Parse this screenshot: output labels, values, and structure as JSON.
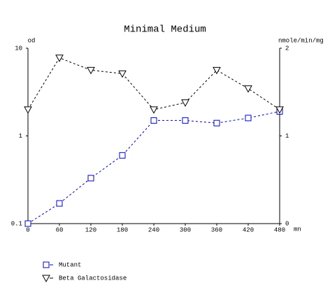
{
  "chart_data": {
    "type": "line",
    "title": "Minimal Medium",
    "ylabel": "od",
    "y2label": "nmole/min/mg",
    "xlabel": "mn",
    "x": [
      0,
      60,
      120,
      180,
      240,
      300,
      360,
      420,
      480
    ],
    "xlim": [
      0,
      480
    ],
    "xticks": [
      0,
      60,
      120,
      180,
      240,
      300,
      360,
      420,
      480
    ],
    "ylim": [
      0.1,
      10
    ],
    "yticks": [
      0.1,
      1,
      10
    ],
    "log_y": true,
    "y2lim": [
      0,
      2
    ],
    "y2ticks": [
      0,
      1,
      2
    ],
    "legend": "bottom-left",
    "series": [
      {
        "name": "Mutant",
        "color": "#0000cc",
        "marker": "square",
        "axis": "y",
        "values": [
          0.1,
          0.17,
          0.33,
          0.6,
          1.5,
          1.5,
          1.4,
          1.6,
          1.9
        ]
      },
      {
        "name": "Beta Galactosidase",
        "color": "#000000",
        "marker": "triangle-down",
        "axis": "y2",
        "values": [
          1.3,
          1.89,
          1.75,
          1.71,
          1.3,
          1.38,
          1.75,
          1.54,
          1.3
        ]
      }
    ]
  }
}
